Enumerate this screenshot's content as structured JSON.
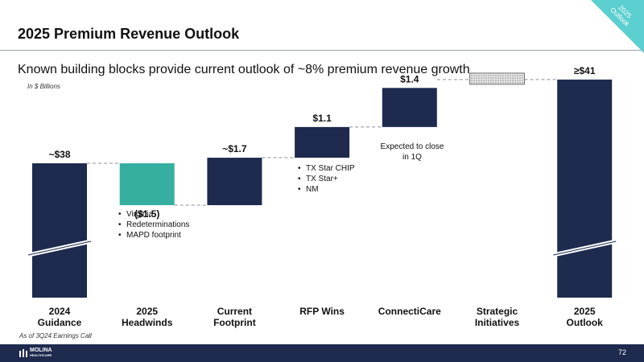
{
  "header": {
    "title": "2025 Premium Revenue Outlook",
    "corner_tag_line1": "2025",
    "corner_tag_line2": "Outlook",
    "subtitle": "Known building blocks provide current outlook of ~8% premium revenue growth",
    "units_note": "In $ Billions",
    "source_note": "As of 3Q24 Earnings Call"
  },
  "footer": {
    "logo_line1": "MOLINA",
    "logo_line2": "HEALTHCARE",
    "page_number": "72"
  },
  "annotations": {
    "headwinds_bullets": [
      "Virginia",
      "Redeterminations",
      "MAPD footprint"
    ],
    "rfp_bullets": [
      "TX Star CHIP",
      "TX Star+",
      "NM"
    ],
    "connecticare_note": "Expected to close in 1Q"
  },
  "colors": {
    "navy": "#1e2a4e",
    "teal": "#36aea0",
    "connector": "#8a8f99",
    "hatch": "#c8c8c8"
  },
  "chart_data": {
    "type": "waterfall",
    "title": "2025 Premium Revenue Outlook",
    "units": "$ Billions",
    "ylim": [
      0,
      42
    ],
    "axis_break": true,
    "categories": [
      "2024 Guidance",
      "2025 Headwinds",
      "Current Footprint",
      "RFP Wins",
      "ConnectiCare",
      "Strategic Initiatives",
      "2025 Outlook"
    ],
    "category_lines": [
      [
        "2024",
        "Guidance"
      ],
      [
        "2025",
        "Headwinds"
      ],
      [
        "Current",
        "Footprint"
      ],
      [
        "RFP Wins"
      ],
      [
        "ConnectiCare"
      ],
      [
        "Strategic",
        "Initiatives"
      ],
      [
        "2025",
        "Outlook"
      ]
    ],
    "steps": [
      {
        "kind": "total",
        "value": 38,
        "label": "~$38"
      },
      {
        "kind": "decrease",
        "value": -1.5,
        "label": "($1.5)"
      },
      {
        "kind": "increase",
        "value": 1.7,
        "label": "~$1.7"
      },
      {
        "kind": "increase",
        "value": 1.1,
        "label": "$1.1"
      },
      {
        "kind": "increase",
        "value": 1.4,
        "label": "$1.4"
      },
      {
        "kind": "placeholder",
        "value": null,
        "label": ""
      },
      {
        "kind": "total",
        "value": 41,
        "label": "≥$41"
      }
    ]
  }
}
